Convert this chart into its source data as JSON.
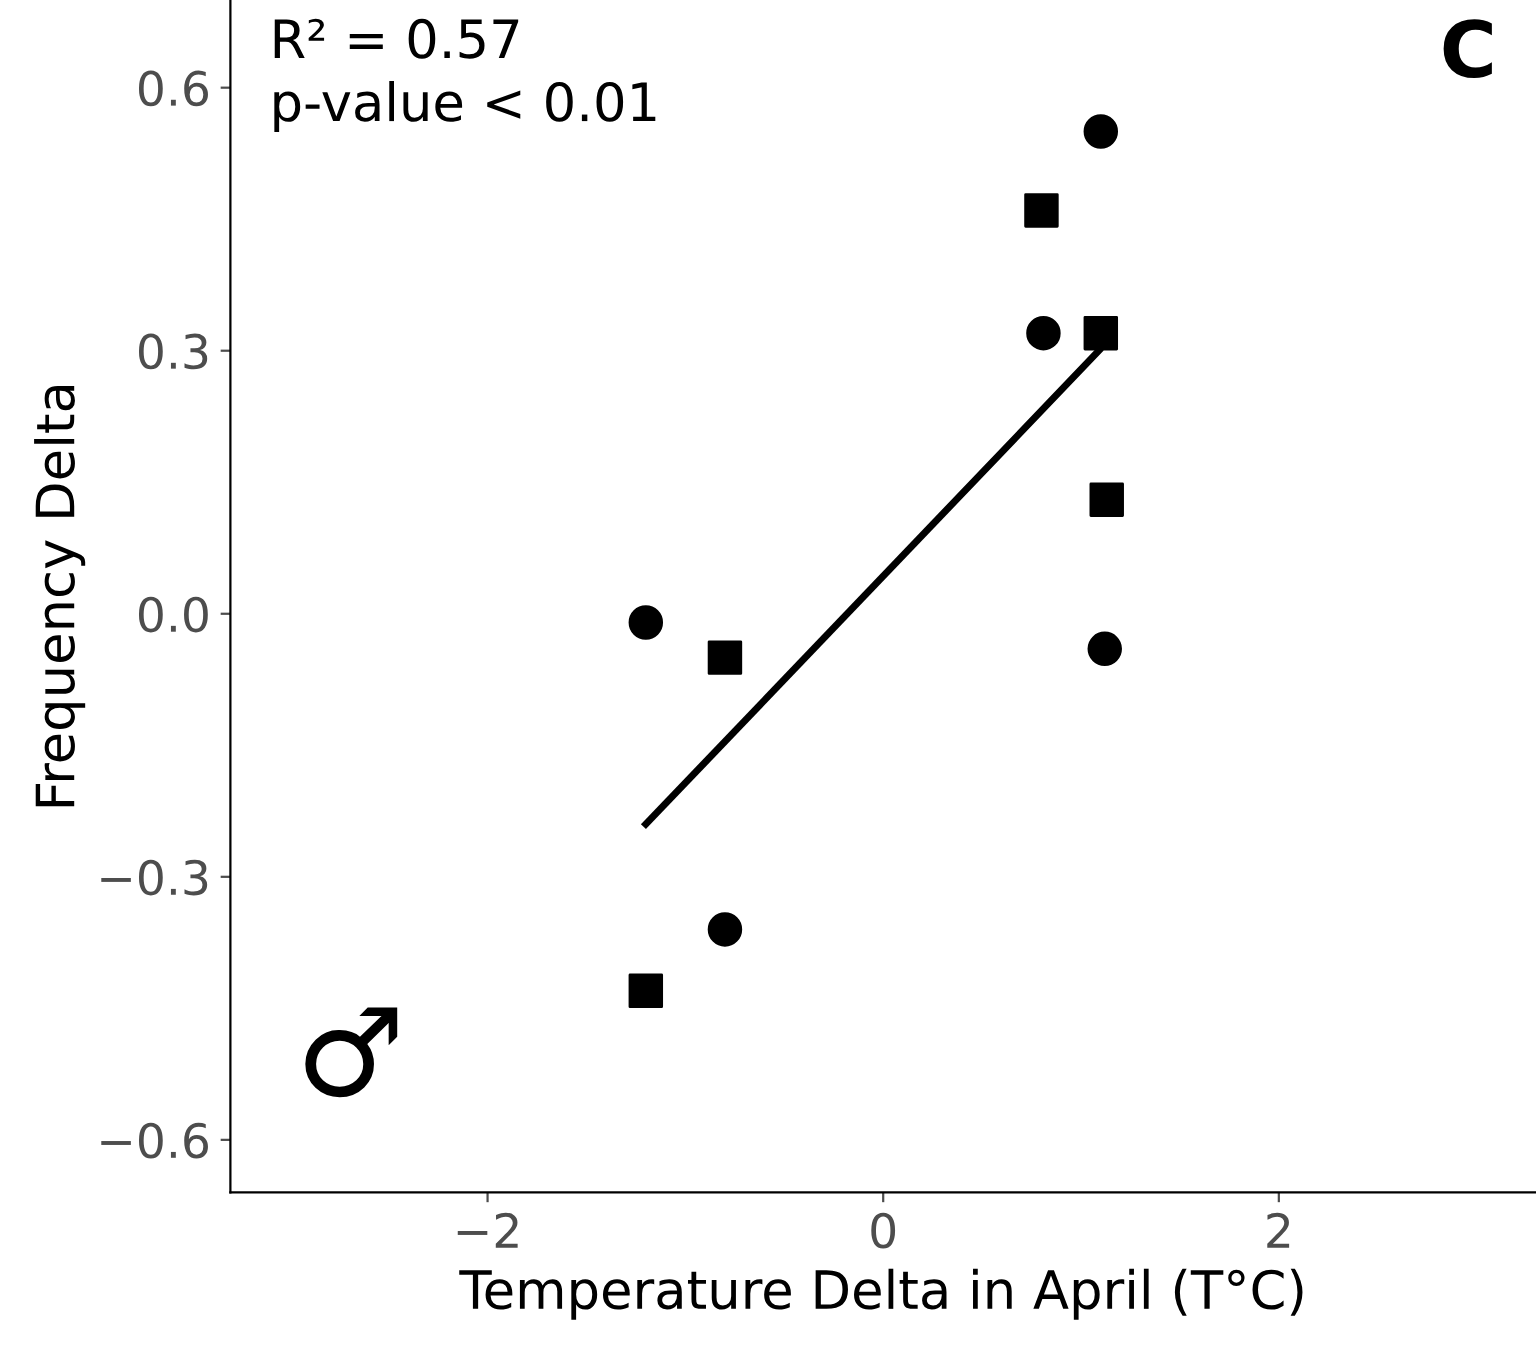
{
  "chart_data": {
    "type": "scatter",
    "xlabel": "Temperature Delta in April (T°C)",
    "ylabel": "Frequency Delta",
    "xlim": [
      -3.3,
      3.3
    ],
    "ylim": [
      -0.66,
      0.7
    ],
    "xticks": [
      {
        "value": -2,
        "label": "−2"
      },
      0,
      2
    ],
    "yticks": [
      {
        "value": -0.6,
        "label": "−0.6"
      },
      {
        "value": -0.3,
        "label": "−0.3"
      },
      {
        "value": 0.0,
        "label": "0.0"
      },
      {
        "value": 0.3,
        "label": "0.3"
      },
      {
        "value": 0.6,
        "label": "0.6"
      }
    ],
    "grid": false,
    "legend": false,
    "series": [
      {
        "color": "#000000",
        "marker": "circle",
        "x": [
          -1.2,
          -0.8,
          0.81,
          1.1,
          1.12
        ],
        "values": [
          -0.01,
          -0.36,
          0.32,
          0.55,
          -0.04
        ]
      },
      {
        "color": "#000000",
        "marker": "square",
        "x": [
          -1.2,
          -0.8,
          0.8,
          1.1,
          1.13
        ],
        "values": [
          -0.43,
          -0.05,
          0.46,
          0.32,
          0.13
        ]
      },
      {
        "type": "line",
        "color": "#000000",
        "marker": "none",
        "line_style": "solid",
        "x": [
          -1.2,
          1.09
        ],
        "values": [
          -0.24,
          0.3
        ]
      }
    ],
    "annotations": [
      "R² = 0.57\np-value < 0.01",
      "C",
      "♂"
    ]
  }
}
